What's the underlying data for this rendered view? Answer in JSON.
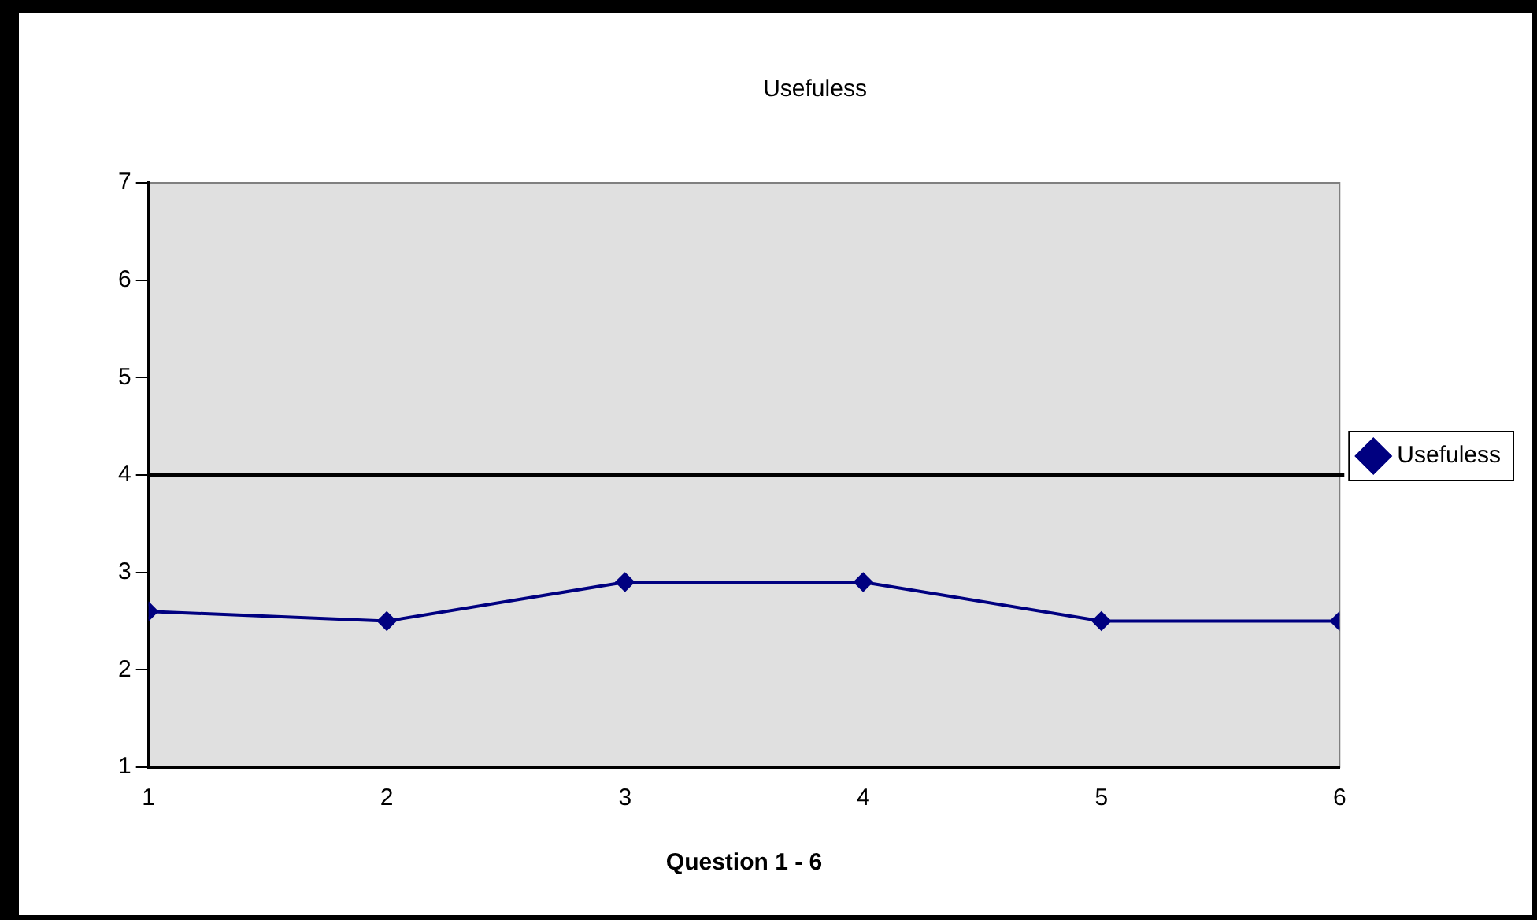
{
  "chart_data": {
    "type": "line",
    "title": "Usefuless",
    "xlabel": "Question 1 - 6",
    "x": [
      1,
      2,
      3,
      4,
      5,
      6
    ],
    "series": [
      {
        "name": "Usefuless",
        "color": "#000080",
        "values": [
          2.6,
          2.5,
          2.9,
          2.9,
          2.5,
          2.5
        ]
      }
    ],
    "xlim": [
      1,
      6
    ],
    "xticks": [
      1,
      2,
      3,
      4,
      5,
      6
    ],
    "ylim": [
      1,
      7
    ],
    "yticks": [
      1,
      2,
      3,
      4,
      5,
      6,
      7
    ],
    "ref_lines": [
      {
        "axis": "y",
        "value": 4,
        "color": "#000000"
      }
    ],
    "grid": false,
    "legend": "right",
    "marker": "diamond",
    "line_style": "solid"
  }
}
